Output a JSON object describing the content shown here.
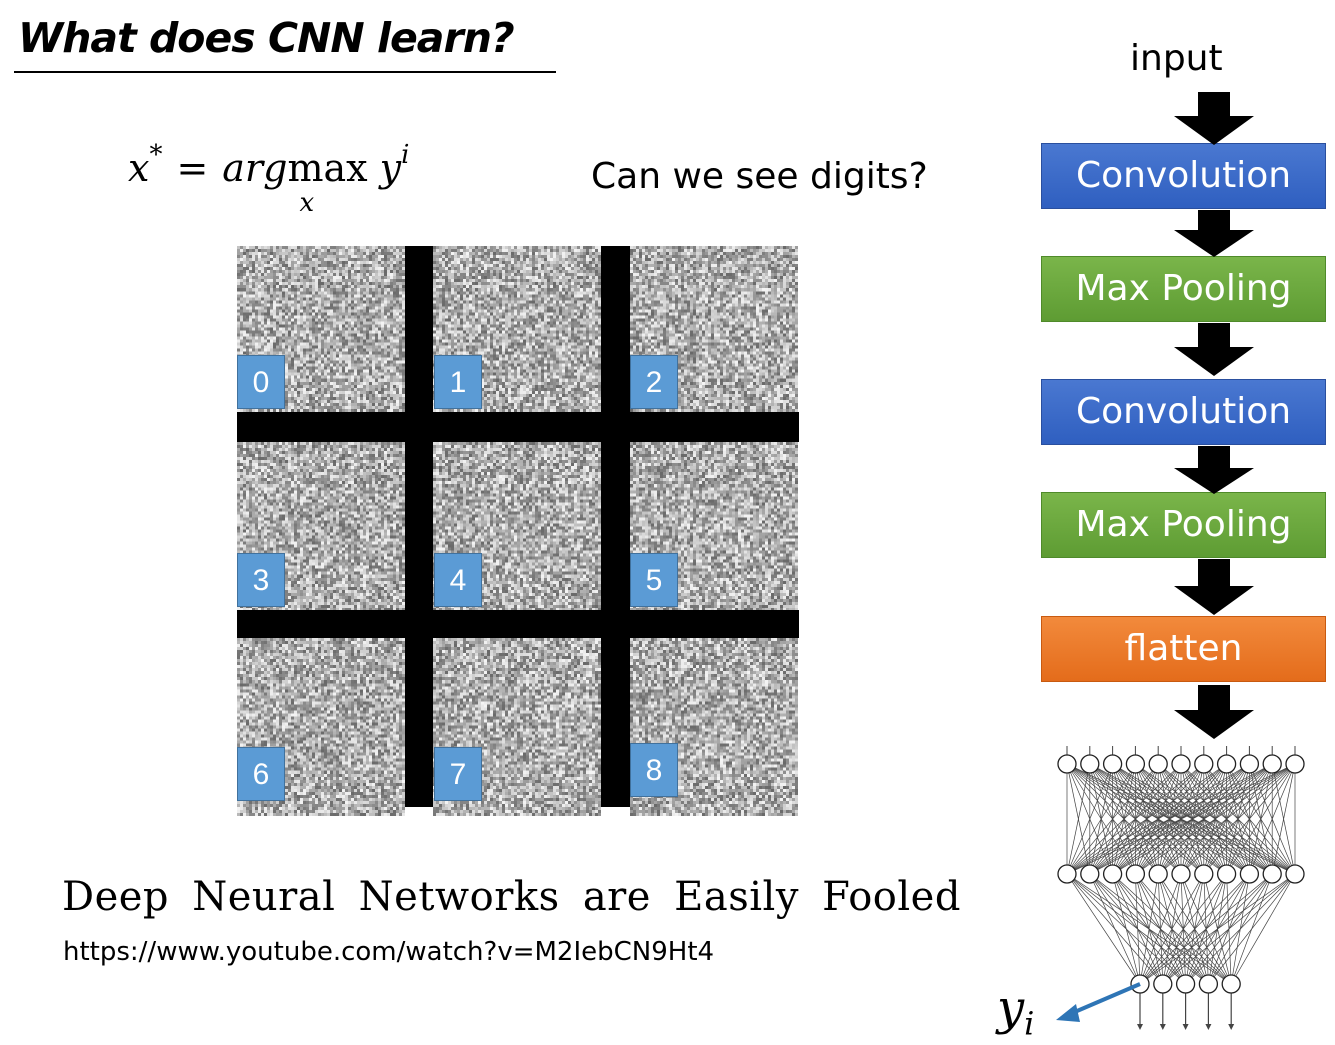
{
  "title": "What does CNN learn?",
  "formula": {
    "lhs": "x",
    "lhs_sup": "*",
    "op": "=",
    "func": "arg",
    "max": "max",
    "max_sub": "x",
    "rhs": "y",
    "rhs_sup": "i"
  },
  "question": "Can we see digits?",
  "grid_labels": [
    "0",
    "1",
    "2",
    "3",
    "4",
    "5",
    "6",
    "7",
    "8"
  ],
  "paper_title": "Deep Neural Networks are Easily Fooled",
  "url": "https://www.youtube.com/watch?v=M2IebCN9Ht4",
  "pipeline": {
    "input": "input",
    "stages": [
      "Convolution",
      "Max Pooling",
      "Convolution",
      "Max Pooling",
      "flatten"
    ]
  },
  "output_label": {
    "var": "y",
    "sub": "i"
  },
  "colors": {
    "convolution": "#3a6bc9",
    "max_pooling": "#6aa83f",
    "flatten": "#ec7a2a",
    "label_box": "#5b9bd5",
    "arrow_blue": "#2e75b6"
  }
}
